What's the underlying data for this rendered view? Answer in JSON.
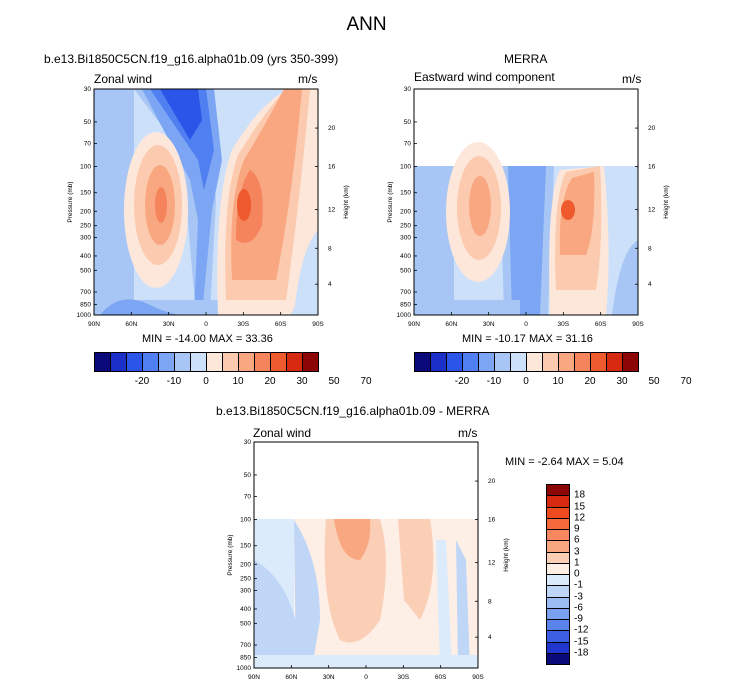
{
  "figure_title": "ANN",
  "chart_data": [
    {
      "type": "heatmap",
      "panel_title": "b.e13.Bi1850C5CN.f19_g16.alpha01b.09 (yrs 350-399)",
      "variable": "Zonal wind",
      "units": "m/s",
      "xlabel": "",
      "ylabel": "Pressure (mb)",
      "y2label": "Height (km)",
      "x_ticks": [
        "90N",
        "60N",
        "30N",
        "0",
        "30S",
        "60S",
        "90S"
      ],
      "y_ticks": [
        "30",
        "50",
        "70",
        "100",
        "150",
        "200",
        "250",
        "300",
        "400",
        "500",
        "700",
        "850",
        "1000"
      ],
      "y2_ticks": [
        "20",
        "16",
        "12",
        "8",
        "4"
      ],
      "ylim": [
        1000,
        30
      ],
      "stats": "MIN = -14.00   MAX = 33.36",
      "min": -14.0,
      "max": 33.36,
      "data_top_pressure": 30,
      "features": [
        {
          "kind": "westerly jet",
          "lat": -27,
          "pressure": 200,
          "value": 33.36
        },
        {
          "kind": "westerly jet",
          "lat": 30,
          "pressure": 200,
          "value": 25
        },
        {
          "kind": "easterlies",
          "lat": 0,
          "pressure": 50,
          "value": -14
        }
      ]
    },
    {
      "type": "heatmap",
      "panel_title": "MERRA",
      "variable": "Eastward wind component",
      "units": "m/s",
      "xlabel": "",
      "ylabel": "Pressure (mb)",
      "y2label": "Height (km)",
      "x_ticks": [
        "90N",
        "60N",
        "30N",
        "0",
        "30S",
        "60S",
        "90S"
      ],
      "y_ticks": [
        "30",
        "50",
        "70",
        "100",
        "150",
        "200",
        "250",
        "300",
        "400",
        "500",
        "700",
        "850",
        "1000"
      ],
      "y2_ticks": [
        "20",
        "16",
        "12",
        "8",
        "4"
      ],
      "ylim": [
        1000,
        30
      ],
      "stats": "MIN = -10.17   MAX = 31.16",
      "min": -10.17,
      "max": 31.16,
      "data_top_pressure": 100,
      "features": [
        {
          "kind": "westerly jet",
          "lat": -30,
          "pressure": 200,
          "value": 31.16
        },
        {
          "kind": "westerly jet",
          "lat": 32,
          "pressure": 200,
          "value": 25
        },
        {
          "kind": "easterlies",
          "lat": 0,
          "pressure": 150,
          "value": -10.17
        }
      ]
    },
    {
      "type": "heatmap",
      "panel_title": "b.e13.Bi1850C5CN.f19_g16.alpha01b.09 - MERRA",
      "variable": "Zonal wind",
      "units": "m/s",
      "xlabel": "",
      "ylabel": "Pressure (mb)",
      "y2label": "Height (km)",
      "x_ticks": [
        "90N",
        "60N",
        "30N",
        "0",
        "30S",
        "60S",
        "90S"
      ],
      "y_ticks": [
        "30",
        "50",
        "70",
        "100",
        "150",
        "200",
        "250",
        "300",
        "400",
        "500",
        "700",
        "850",
        "1000"
      ],
      "y2_ticks": [
        "20",
        "16",
        "12",
        "8",
        "4"
      ],
      "ylim": [
        1000,
        30
      ],
      "stats": "MIN =  -2.64   MAX =   5.04",
      "min": -2.64,
      "max": 5.04,
      "data_top_pressure": 100
    }
  ],
  "colorbars": {
    "main": {
      "labels": [
        "-20",
        "-10",
        "0",
        "10",
        "20",
        "30",
        "50",
        "70"
      ],
      "colors": [
        "#0a0a7a",
        "#1a30c9",
        "#2b54e8",
        "#4f7ff0",
        "#7ca6f4",
        "#a7c6f5",
        "#cde0f9",
        "#fde7da",
        "#fccaae",
        "#f9a781",
        "#f5835c",
        "#ee5a2d",
        "#d52a10",
        "#8c0606"
      ]
    },
    "diff": {
      "labels": [
        "18",
        "15",
        "12",
        "9",
        "6",
        "3",
        "1",
        "0",
        "-1",
        "-3",
        "-6",
        "-9",
        "-12",
        "-15",
        "-18"
      ],
      "colors": [
        "#8c0606",
        "#d52a10",
        "#ee4a20",
        "#f46a3c",
        "#f7875e",
        "#f9a781",
        "#fbcfb6",
        "#fdeee6",
        "#dcebfb",
        "#bfd6f7",
        "#9cbdf3",
        "#7aa1ef",
        "#5a83ec",
        "#3a5fe3",
        "#1f37cf",
        "#0a0a7a"
      ]
    }
  }
}
